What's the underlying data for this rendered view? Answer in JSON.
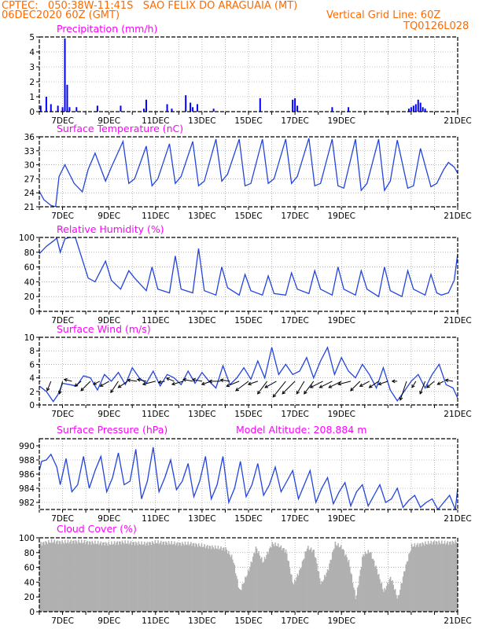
{
  "header": {
    "line1_left": "CPTEC:   050:38W-11:41S   SAO FELIX DO ARAGUAIA (MT)",
    "line2_left": "06DEC2020 60Z (GMT)",
    "line2_right": "Vertical Grid Line: 60Z",
    "line3_right": "TQ0126L028"
  },
  "colors": {
    "header": "#ff6a00",
    "title": "#ff00ff",
    "line": "#2244dd",
    "bar": "#0000ff",
    "cloud": "#b0b0b0",
    "wind_arrow": "#000000"
  },
  "chart_data": [
    {
      "type": "bar",
      "title": "Precipitation (mm/h)",
      "ylim": [
        0,
        5
      ],
      "yticks": [
        "0",
        "1",
        "2",
        "3",
        "4",
        "5"
      ],
      "xticks": [
        "7DEC",
        "9DEC",
        "11DEC",
        "13DEC",
        "15DEC",
        "17DEC",
        "19DEC",
        "21DEC"
      ],
      "x": [
        0.06,
        0.3,
        0.5,
        0.8,
        1.0,
        1.1,
        1.2,
        1.3,
        1.6,
        2.5,
        3.5,
        4.5,
        4.6,
        5.5,
        5.7,
        6.3,
        6.5,
        6.6,
        6.8,
        7.5,
        9.5,
        10.9,
        11.0,
        11.1,
        12.6,
        13.3,
        15.9,
        16.0,
        16.1,
        16.2,
        16.3,
        16.4,
        16.5,
        16.6
      ],
      "values": [
        0.4,
        1.0,
        0.5,
        0.4,
        0.3,
        4.9,
        1.8,
        0.3,
        0.3,
        0.4,
        0.4,
        0.2,
        0.8,
        0.5,
        0.2,
        1.1,
        0.6,
        0.3,
        0.5,
        0.2,
        0.9,
        0.8,
        0.9,
        0.4,
        0.3,
        0.3,
        0.2,
        0.3,
        0.4,
        0.5,
        0.8,
        0.6,
        0.3,
        0.2
      ]
    },
    {
      "type": "line",
      "title": "Surface Temperature (nC)",
      "ylim": [
        21,
        36
      ],
      "yticks": [
        "21",
        "24",
        "27",
        "30",
        "33",
        "36"
      ],
      "xticks": [
        "7DEC",
        "9DEC",
        "11DEC",
        "13DEC",
        "15DEC",
        "17DEC",
        "19DEC",
        "21DEC"
      ],
      "x": [
        0,
        0.2,
        0.5,
        0.7,
        0.85,
        1.1,
        1.5,
        1.85,
        2.1,
        2.4,
        2.85,
        3.1,
        3.6,
        3.85,
        4.1,
        4.6,
        4.85,
        5.1,
        5.6,
        5.85,
        6.1,
        6.6,
        6.85,
        7.1,
        7.6,
        7.85,
        8.1,
        8.6,
        8.85,
        9.1,
        9.6,
        9.85,
        10.1,
        10.6,
        10.85,
        11.1,
        11.6,
        11.85,
        12.1,
        12.6,
        12.85,
        13.1,
        13.6,
        13.85,
        14.1,
        14.6,
        14.85,
        15.1,
        15.4,
        15.85,
        16.1,
        16.4,
        16.85,
        17.1,
        17.4,
        17.6,
        17.85,
        18
      ],
      "values": [
        24.3,
        22.5,
        21.3,
        21.0,
        27.5,
        30.0,
        26.0,
        24.2,
        29.0,
        32.5,
        26.5,
        29.5,
        35.0,
        26.0,
        27.0,
        34.0,
        25.5,
        27.0,
        34.5,
        26.0,
        27.5,
        35.0,
        25.5,
        26.5,
        35.5,
        26.5,
        28.0,
        35.5,
        25.5,
        26.0,
        35.5,
        26.0,
        27.0,
        35.5,
        26.0,
        27.5,
        35.7,
        25.5,
        26.0,
        35.5,
        25.5,
        25.0,
        35.5,
        24.5,
        26.0,
        35.5,
        24.5,
        26.5,
        35.3,
        25.0,
        25.5,
        33.5,
        25.3,
        26.0,
        29.0,
        30.5,
        29.5,
        28.2
      ]
    },
    {
      "type": "line",
      "title": "Relative Humidity (%)",
      "ylim": [
        0,
        100
      ],
      "yticks": [
        "0",
        "20",
        "40",
        "60",
        "80",
        "100"
      ],
      "xticks": [
        "7DEC",
        "9DEC",
        "11DEC",
        "13DEC",
        "15DEC",
        "17DEC",
        "19DEC",
        "21DEC"
      ],
      "x": [
        0,
        0.3,
        0.6,
        0.75,
        0.9,
        1.1,
        1.3,
        1.55,
        1.85,
        2.1,
        2.4,
        2.85,
        3.1,
        3.5,
        3.85,
        4.1,
        4.6,
        4.85,
        5.1,
        5.6,
        5.85,
        6.1,
        6.6,
        6.85,
        7.1,
        7.6,
        7.85,
        8.1,
        8.6,
        8.85,
        9.1,
        9.6,
        9.85,
        10.1,
        10.6,
        10.85,
        11.1,
        11.6,
        11.85,
        12.1,
        12.6,
        12.85,
        13.1,
        13.6,
        13.85,
        14.1,
        14.6,
        14.85,
        15.1,
        15.6,
        15.85,
        16.1,
        16.6,
        16.85,
        17.1,
        17.3,
        17.6,
        17.85,
        18
      ],
      "values": [
        78,
        88,
        95,
        99,
        80,
        98,
        100,
        100,
        70,
        45,
        40,
        68,
        42,
        30,
        55,
        45,
        28,
        60,
        30,
        25,
        75,
        30,
        25,
        85,
        28,
        22,
        60,
        32,
        22,
        50,
        28,
        22,
        48,
        24,
        22,
        52,
        30,
        24,
        55,
        30,
        22,
        60,
        30,
        22,
        55,
        30,
        20,
        60,
        28,
        20,
        55,
        30,
        22,
        50,
        25,
        22,
        25,
        42,
        78
      ]
    },
    {
      "type": "line",
      "title": "Surface Wind (m/s)",
      "ylim": [
        0,
        10
      ],
      "yticks": [
        "0",
        "2",
        "4",
        "6",
        "8",
        "10"
      ],
      "xticks": [
        "7DEC",
        "9DEC",
        "11DEC",
        "13DEC",
        "15DEC",
        "17DEC",
        "19DEC",
        "21DEC"
      ],
      "x": [
        0,
        0.3,
        0.6,
        0.8,
        1.0,
        1.3,
        1.6,
        1.9,
        2.2,
        2.5,
        2.8,
        3.1,
        3.4,
        3.7,
        4.0,
        4.3,
        4.6,
        4.9,
        5.2,
        5.5,
        5.8,
        6.1,
        6.4,
        6.7,
        7.0,
        7.3,
        7.6,
        7.9,
        8.2,
        8.5,
        8.8,
        9.1,
        9.4,
        9.7,
        10.0,
        10.3,
        10.6,
        10.9,
        11.2,
        11.5,
        11.8,
        12.1,
        12.4,
        12.7,
        13.0,
        13.3,
        13.6,
        13.9,
        14.2,
        14.5,
        14.8,
        15.1,
        15.4,
        15.7,
        16.0,
        16.3,
        16.6,
        16.9,
        17.2,
        17.5,
        17.8,
        18
      ],
      "values": [
        2.8,
        2.0,
        0.5,
        1.5,
        3.2,
        3.0,
        2.8,
        4.3,
        4.0,
        2.2,
        4.5,
        3.5,
        4.8,
        3.0,
        5.5,
        4.0,
        3.2,
        5.0,
        2.8,
        4.5,
        4.0,
        3.0,
        5.0,
        3.2,
        4.8,
        3.5,
        2.5,
        5.8,
        3.0,
        4.0,
        5.5,
        3.8,
        6.5,
        4.0,
        8.5,
        4.5,
        6.0,
        4.5,
        5.0,
        7.0,
        4.0,
        6.5,
        8.5,
        4.5,
        7.0,
        5.0,
        4.0,
        6.0,
        4.5,
        2.5,
        5.5,
        2.2,
        0.6,
        2.0,
        3.5,
        4.5,
        2.5,
        4.5,
        6.0,
        3.0,
        2.5,
        1.0
      ],
      "arrows": {
        "x": [
          0.05,
          0.5,
          1.0,
          1.4,
          1.8,
          2.2,
          2.6,
          3.0,
          3.4,
          3.8,
          4.2,
          4.6,
          5.0,
          5.4,
          5.8,
          6.2,
          6.6,
          7.0,
          7.4,
          7.8,
          8.2,
          8.6,
          9.0,
          9.4,
          9.8,
          10.2,
          10.6,
          11.0,
          11.4,
          11.8,
          12.2,
          12.6,
          13.0,
          13.4,
          13.8,
          14.2,
          14.6,
          15.0,
          15.4,
          15.8,
          16.2,
          16.6,
          17.0,
          17.4,
          17.8
        ],
        "u": [
          -1.2,
          -0.6,
          -0.5,
          -1.2,
          -1.0,
          -1.5,
          -1.0,
          -1.4,
          -1.2,
          -1.5,
          -1.5,
          -1.4,
          -2.0,
          -1.0,
          -1.2,
          -1.8,
          -1.5,
          -1.5,
          -1.5,
          -1.8,
          -1.5,
          -2.0,
          -2.0,
          -1.5,
          -1.5,
          -1.8,
          -2.0,
          -2.0,
          -1.2,
          -1.5,
          -2.0,
          -2.0,
          -2.0,
          -2.0,
          -1.5,
          -1.5,
          -1.5,
          -1.5,
          -0.8,
          -1.0,
          -0.6,
          -0.8,
          -1.2,
          -1.0,
          -1.2
        ],
        "v": [
          0.3,
          -1.5,
          -2.0,
          0.3,
          -0.8,
          -1.5,
          -0.5,
          -0.8,
          -1.8,
          -1.0,
          0.2,
          0.3,
          -0.5,
          -0.2,
          0.5,
          -0.5,
          0.3,
          0.3,
          -0.5,
          0.0,
          0.2,
          -0.8,
          -1.5,
          -0.5,
          -2.0,
          -1.0,
          -2.5,
          -2.0,
          -2.0,
          -2.0,
          -1.0,
          -1.0,
          -1.0,
          -0.5,
          -1.5,
          -0.8,
          -1.0,
          -0.5,
          0.0,
          -3.0,
          -1.0,
          -2.0,
          -1.0,
          -0.5,
          0.2
        ]
      }
    },
    {
      "type": "line",
      "title": "Surface Pressure (hPa)",
      "annotation": "Model Altitude: 208.884 m",
      "ylim": [
        981,
        991
      ],
      "yticks": [
        "982",
        "984",
        "986",
        "988",
        "990"
      ],
      "xticks": [
        "7DEC",
        "9DEC",
        "11DEC",
        "13DEC",
        "15DEC",
        "17DEC",
        "19DEC",
        "21DEC"
      ],
      "x": [
        0,
        0.1,
        0.3,
        0.5,
        0.75,
        0.9,
        1.15,
        1.4,
        1.65,
        1.9,
        2.15,
        2.4,
        2.65,
        2.9,
        3.15,
        3.4,
        3.65,
        3.9,
        4.15,
        4.4,
        4.65,
        4.9,
        5.15,
        5.4,
        5.65,
        5.9,
        6.15,
        6.4,
        6.65,
        6.9,
        7.15,
        7.4,
        7.65,
        7.9,
        8.15,
        8.4,
        8.65,
        8.9,
        9.15,
        9.4,
        9.65,
        9.9,
        10.15,
        10.4,
        10.65,
        10.9,
        11.15,
        11.4,
        11.65,
        11.9,
        12.15,
        12.4,
        12.65,
        12.9,
        13.15,
        13.4,
        13.65,
        13.9,
        14.15,
        14.4,
        14.65,
        14.9,
        15.15,
        15.4,
        15.65,
        15.9,
        16.15,
        16.4,
        16.65,
        16.9,
        17.15,
        17.4,
        17.65,
        17.9,
        18
      ],
      "values": [
        986.5,
        987.8,
        988.0,
        988.8,
        987.0,
        984.5,
        988.2,
        983.5,
        984.5,
        988.5,
        984.0,
        986.5,
        988.5,
        983.5,
        985.5,
        989.0,
        984.5,
        985.0,
        989.5,
        982.5,
        985.0,
        989.8,
        983.5,
        985.5,
        988.0,
        983.8,
        985.0,
        987.5,
        982.8,
        985.0,
        988.5,
        982.5,
        984.5,
        988.5,
        982.0,
        984.0,
        987.8,
        982.8,
        984.5,
        987.5,
        983.0,
        984.5,
        987.0,
        983.5,
        985.0,
        986.5,
        982.5,
        984.5,
        986.5,
        982.0,
        984.0,
        985.5,
        981.8,
        983.5,
        984.8,
        981.5,
        983.5,
        984.5,
        981.5,
        983.0,
        984.5,
        982.0,
        982.5,
        984.0,
        981.3,
        982.3,
        983.0,
        981.3,
        982.0,
        982.5,
        981.0,
        982.0,
        983.0,
        981.0,
        984.0
      ]
    },
    {
      "type": "area",
      "title": "Cloud Cover (%)",
      "ylim": [
        0,
        100
      ],
      "yticks": [
        "0",
        "20",
        "40",
        "60",
        "80",
        "100"
      ],
      "xticks": [
        "7DEC",
        "9DEC",
        "11DEC",
        "13DEC",
        "15DEC",
        "17DEC",
        "19DEC",
        "21DEC"
      ],
      "x": [
        0,
        0.5,
        1.0,
        1.5,
        2.0,
        2.5,
        3.0,
        3.5,
        4.0,
        4.5,
        5.0,
        5.5,
        6.0,
        6.5,
        7.0,
        7.5,
        8.0,
        8.3,
        8.6,
        9.0,
        9.3,
        9.6,
        10.0,
        10.3,
        10.6,
        10.9,
        11.2,
        11.5,
        11.8,
        12.1,
        12.4,
        12.7,
        13.0,
        13.3,
        13.6,
        13.9,
        14.2,
        14.5,
        14.8,
        15.1,
        15.4,
        15.7,
        16.0,
        16.5,
        17.0,
        17.5,
        18.0
      ],
      "values": [
        95,
        98,
        97,
        98,
        97,
        96,
        95,
        97,
        96,
        95,
        97,
        96,
        95,
        95,
        92,
        90,
        88,
        75,
        30,
        60,
        90,
        70,
        95,
        92,
        85,
        40,
        60,
        90,
        85,
        40,
        60,
        95,
        90,
        70,
        20,
        80,
        85,
        60,
        30,
        50,
        20,
        60,
        92,
        95,
        97,
        96,
        98
      ]
    }
  ]
}
